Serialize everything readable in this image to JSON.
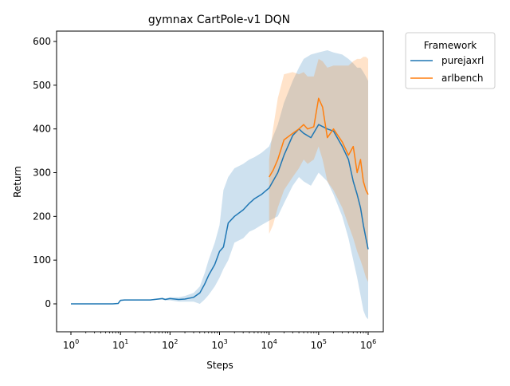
{
  "chart_data": {
    "type": "line",
    "title": "gymnax CartPole-v1 DQN",
    "xlabel": "Steps",
    "ylabel": "Return",
    "x_scale": "log",
    "xlim": [
      1,
      1000000
    ],
    "ylim": [
      -70,
      630
    ],
    "x_ticks": [
      1,
      10,
      100,
      1000,
      10000,
      100000,
      1000000
    ],
    "x_tick_labels": [
      {
        "base": "10",
        "exp": "0"
      },
      {
        "base": "10",
        "exp": "1"
      },
      {
        "base": "10",
        "exp": "2"
      },
      {
        "base": "10",
        "exp": "3"
      },
      {
        "base": "10",
        "exp": "4"
      },
      {
        "base": "10",
        "exp": "5"
      },
      {
        "base": "10",
        "exp": "6"
      }
    ],
    "y_ticks": [
      0,
      100,
      200,
      300,
      400,
      500,
      600
    ],
    "y_tick_labels": [
      "0",
      "100",
      "200",
      "300",
      "400",
      "500",
      "600"
    ],
    "grid": false,
    "legend": {
      "title": "Framework",
      "placement": "outside-right-top"
    },
    "series": [
      {
        "name": "purejaxrl",
        "color": "#1f77b4",
        "band_color": "#1f77b4",
        "x": [
          1,
          3,
          7,
          9,
          10,
          12,
          20,
          40,
          70,
          80,
          100,
          150,
          200,
          300,
          400,
          500,
          600,
          800,
          1000,
          1200,
          1500,
          2000,
          3000,
          4000,
          5000,
          7000,
          10000,
          15000,
          20000,
          30000,
          40000,
          50000,
          70000,
          100000,
          150000,
          200000,
          300000,
          400000,
          500000,
          600000,
          700000,
          800000,
          900000,
          1000000
        ],
        "y": [
          0,
          0,
          0,
          1,
          8,
          9,
          9,
          9,
          12,
          10,
          12,
          10,
          11,
          15,
          25,
          45,
          65,
          90,
          120,
          130,
          185,
          200,
          215,
          230,
          240,
          250,
          265,
          300,
          340,
          385,
          400,
          390,
          380,
          410,
          400,
          395,
          360,
          330,
          280,
          250,
          220,
          180,
          150,
          125
        ],
        "lower": [
          0,
          0,
          0,
          0,
          6,
          8,
          8,
          8,
          10,
          8,
          8,
          5,
          5,
          5,
          0,
          10,
          20,
          40,
          60,
          80,
          100,
          140,
          150,
          165,
          170,
          180,
          190,
          200,
          230,
          270,
          290,
          280,
          270,
          300,
          280,
          250,
          200,
          150,
          100,
          60,
          20,
          -15,
          -30,
          -35
        ],
        "upper": [
          0,
          0,
          0,
          2,
          10,
          10,
          10,
          10,
          14,
          12,
          15,
          15,
          18,
          25,
          40,
          70,
          100,
          140,
          180,
          260,
          290,
          310,
          320,
          330,
          335,
          345,
          360,
          410,
          460,
          510,
          540,
          560,
          570,
          575,
          580,
          575,
          570,
          560,
          550,
          540,
          540,
          530,
          520,
          510
        ]
      },
      {
        "name": "arlbench",
        "color": "#ff7f0e",
        "band_color": "#ff7f0e",
        "x": [
          10000,
          12000,
          15000,
          20000,
          30000,
          40000,
          50000,
          60000,
          80000,
          100000,
          120000,
          150000,
          200000,
          300000,
          400000,
          500000,
          600000,
          700000,
          800000,
          900000,
          1000000
        ],
        "y": [
          290,
          305,
          330,
          375,
          390,
          400,
          410,
          400,
          405,
          470,
          450,
          380,
          400,
          370,
          340,
          360,
          300,
          330,
          280,
          260,
          250
        ],
        "lower": [
          160,
          180,
          220,
          260,
          290,
          310,
          330,
          320,
          330,
          360,
          330,
          280,
          260,
          220,
          180,
          150,
          120,
          100,
          80,
          60,
          50
        ],
        "upper": [
          330,
          400,
          470,
          525,
          530,
          525,
          530,
          520,
          520,
          560,
          555,
          540,
          545,
          545,
          545,
          555,
          560,
          560,
          565,
          565,
          560
        ]
      }
    ]
  }
}
